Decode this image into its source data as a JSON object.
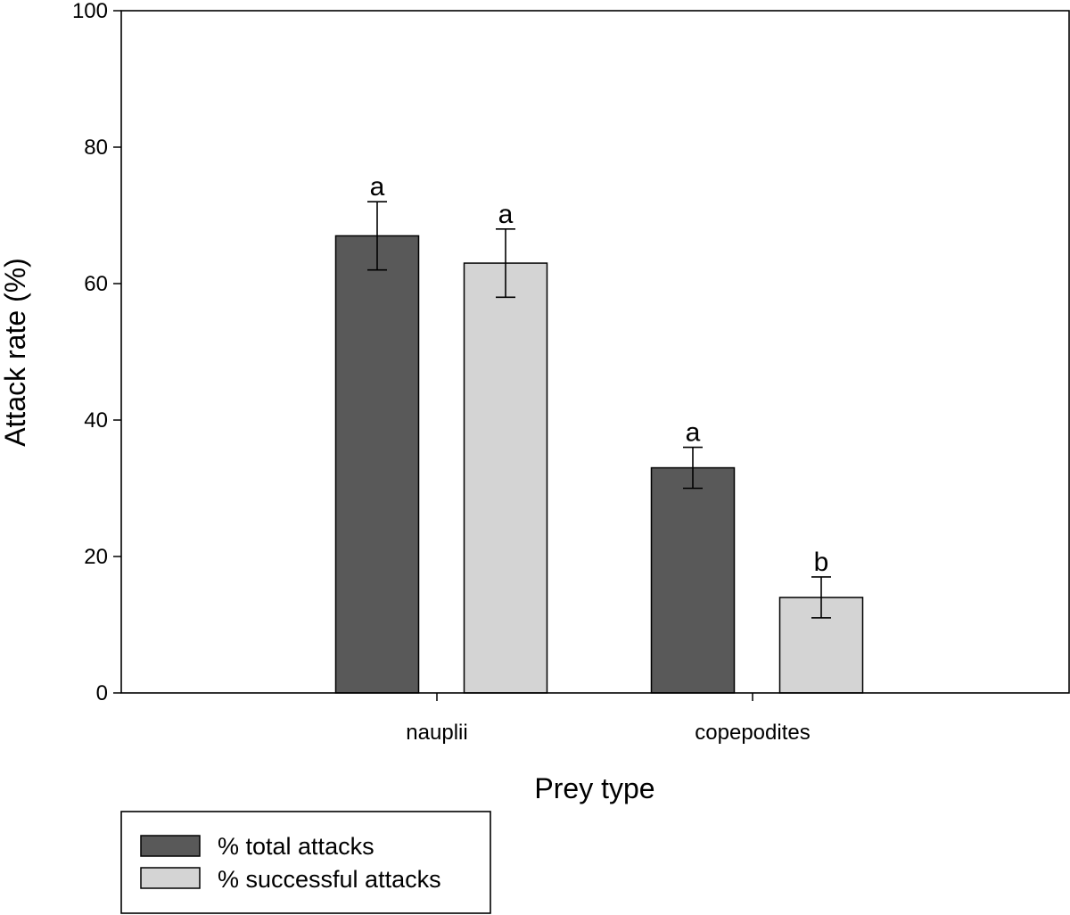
{
  "chart_data": {
    "type": "bar",
    "title": "",
    "xlabel": "Prey type",
    "ylabel": "Attack rate (%)",
    "ylim": [
      0,
      100
    ],
    "yticks": [
      0,
      20,
      40,
      60,
      80,
      100
    ],
    "categories": [
      "nauplii",
      "copepodites"
    ],
    "series": [
      {
        "name": "% total attacks",
        "color": "#595959",
        "values": [
          67,
          33
        ],
        "errors": [
          5,
          3
        ],
        "labels": [
          "a",
          "a"
        ]
      },
      {
        "name": "% successful attacks",
        "color": "#d4d4d4",
        "values": [
          63,
          14
        ],
        "errors": [
          5,
          3
        ],
        "labels": [
          "a",
          "b"
        ]
      }
    ],
    "grid": false,
    "legend_position": "bottom-left"
  }
}
